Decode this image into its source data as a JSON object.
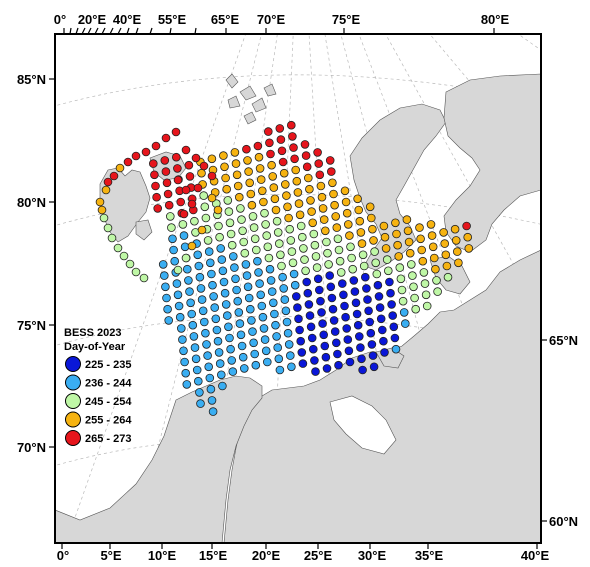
{
  "map": {
    "top_axis_labels": [
      "0°",
      "20°E",
      "40°E",
      "55°E",
      "65°E",
      "70°E",
      "75°E",
      "80°E"
    ],
    "bottom_axis_labels": [
      "0°",
      "5°E",
      "10°E",
      "15°E",
      "20°E",
      "25°E",
      "30°E",
      "35°E",
      "40°E"
    ],
    "left_axis_labels": [
      "85°N",
      "80°N",
      "75°N",
      "70°N"
    ],
    "right_axis_labels": [
      "65°N",
      "60°N"
    ]
  },
  "legend": {
    "title": "BESS 2023",
    "subtitle": "Day-of-Year",
    "bins": [
      {
        "label": "225 - 235",
        "color": "#0a17d8"
      },
      {
        "label": "236 - 244",
        "color": "#3aaef2"
      },
      {
        "label": "245 - 254",
        "color": "#bff7a6"
      },
      {
        "label": "255 - 264",
        "color": "#f6b311"
      },
      {
        "label": "265 - 273",
        "color": "#e6151c"
      }
    ]
  },
  "colors": {
    "land": "#d7d7d7",
    "sea": "#ffffff",
    "graticule": "#b9b9b9",
    "station_outline": "#222222"
  }
}
